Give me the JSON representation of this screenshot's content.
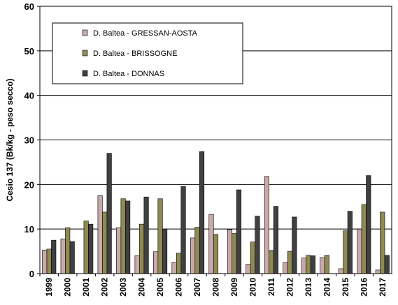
{
  "chart_data": {
    "type": "bar",
    "title": "",
    "xlabel": "",
    "ylabel": "Cesio 137 (Bk/kg - peso secco)",
    "ylim": [
      0,
      60
    ],
    "yticks": [
      0,
      10,
      20,
      30,
      40,
      50,
      60
    ],
    "grid": true,
    "legend_position": "top-left",
    "categories": [
      "1999",
      "2000",
      "2001",
      "2002",
      "2003",
      "2004",
      "2005",
      "2006",
      "2007",
      "2008",
      "2009",
      "2010",
      "2011",
      "2012",
      "2013",
      "2014",
      "2015",
      "2016",
      "2017"
    ],
    "series": [
      {
        "name": "D. Baltea - GRESSAN-AOSTA",
        "color": "#c9a9a9",
        "values": [
          5.3,
          7.8,
          0,
          17.5,
          10.3,
          4.0,
          4.9,
          2.5,
          8.0,
          13.3,
          9.9,
          2.1,
          21.8,
          2.5,
          3.5,
          3.6,
          1.1,
          10.0,
          0.8
        ]
      },
      {
        "name": "D. Baltea - BRISSOGNE",
        "color": "#8f8a52",
        "values": [
          5.5,
          10.3,
          11.8,
          13.8,
          16.8,
          11.1,
          16.8,
          4.6,
          10.4,
          8.8,
          9.0,
          7.1,
          5.2,
          5.0,
          4.1,
          4.1,
          9.6,
          15.5,
          13.8
        ]
      },
      {
        "name": "D. Baltea - DONNAS",
        "color": "#404040",
        "values": [
          7.5,
          7.2,
          11.1,
          27.0,
          16.3,
          17.2,
          10.0,
          19.6,
          27.4,
          0,
          18.8,
          12.9,
          15.1,
          12.7,
          4.0,
          0,
          14.0,
          22.0,
          4.1
        ]
      }
    ]
  }
}
